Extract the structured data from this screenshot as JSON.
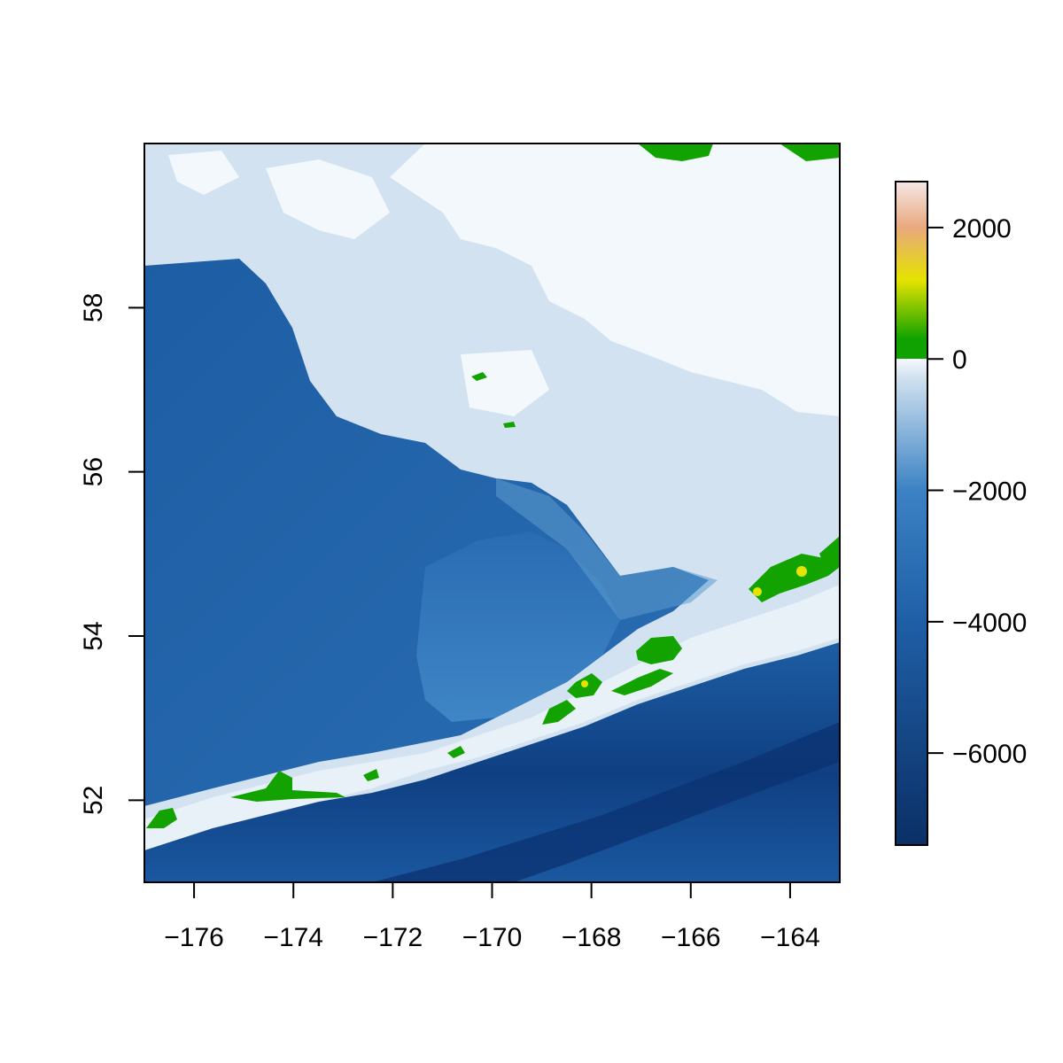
{
  "chart_data": {
    "type": "heatmap",
    "title": "",
    "xlabel": "",
    "ylabel": "",
    "xlim": [
      -177,
      -163
    ],
    "ylim": [
      51,
      60
    ],
    "x_ticks": [
      -176,
      -174,
      -172,
      -170,
      -168,
      -166,
      -164
    ],
    "y_ticks": [
      52,
      54,
      56,
      58
    ],
    "legend": {
      "position": "right",
      "ticks": [
        2000,
        0,
        -2000,
        -4000,
        -6000
      ],
      "range": [
        -7400,
        2700
      ],
      "colors": {
        "deep": "#0b2f66",
        "ocean": "#1f5fa6",
        "mid": "#3b82c4",
        "shelf": "#cfe0ef",
        "shallow": "#f5f9fd",
        "land_low": "#10a200",
        "land_mid": "#e5e300",
        "land_high": "#e9a87d",
        "peak": "#f4e7e6"
      }
    },
    "features": [
      {
        "type": "land",
        "label": "",
        "shape": "Unimak / Alaska Peninsula tip"
      },
      {
        "type": "land",
        "label": "",
        "shape": "Fox Islands chain"
      },
      {
        "type": "land",
        "label": "",
        "shape": "Islands of Four Mountains / Andreanof chain"
      },
      {
        "type": "land",
        "label": "",
        "shape": "Pribilof Islands"
      },
      {
        "type": "land",
        "label": "",
        "shape": "Nunivak / mainland at top edge"
      }
    ]
  }
}
